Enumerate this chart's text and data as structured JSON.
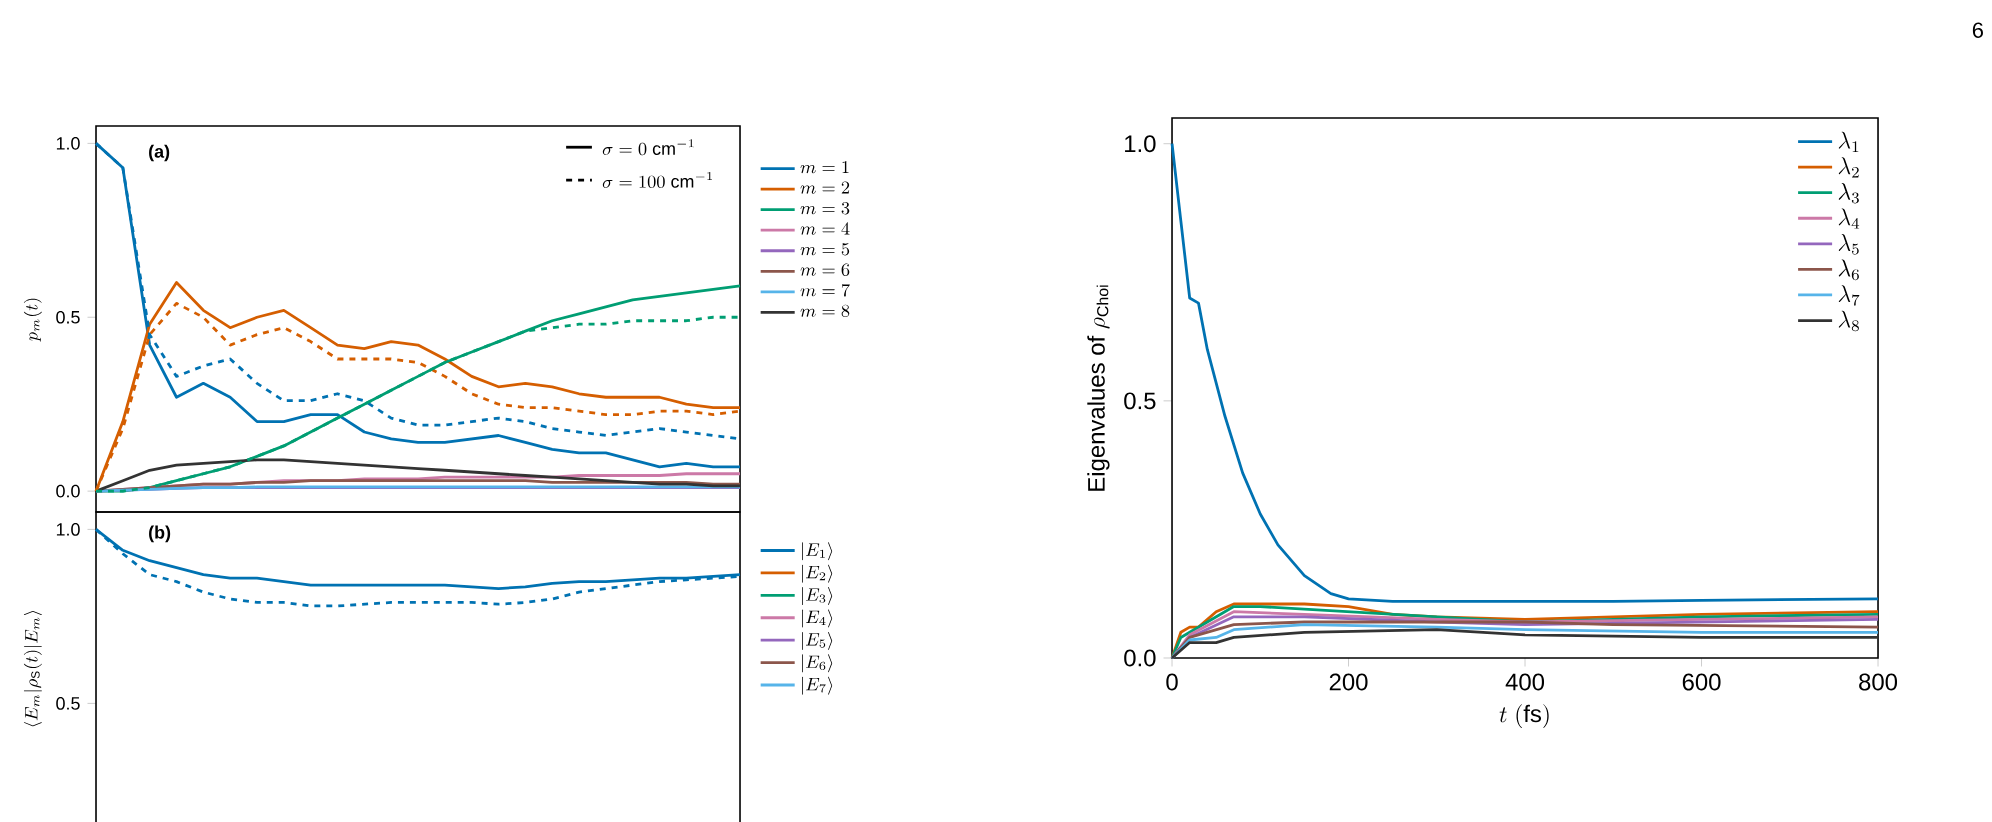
{
  "chart_data": [
    {
      "type": "line",
      "ylabel": "p_m(t)",
      "categories": [
        null,
        null,
        null,
        null,
        null,
        null,
        null,
        null,
        null,
        null,
        null,
        null,
        null,
        null,
        null,
        null,
        null,
        null,
        null,
        null,
        null,
        null,
        null,
        null,
        null
      ],
      "ylim": [
        -0.06,
        1.05
      ],
      "yticks": [
        {
          "value": 0,
          "label": "0.0"
        },
        {
          "value": 0.5,
          "label": "0.5"
        },
        {
          "value": 1,
          "label": "1.0"
        }
      ],
      "tick_labels": "y",
      "legend": "right",
      "annotations": [
        "(a)",
        "\\sigma = 0\\ \\mathrm{cm}^{-1}",
        "\\sigma = 100\\ \\mathrm{cm}^{-1}"
      ],
      "series": [
        {
          "name": "m = 1",
          "color": "#0072b2",
          "values": [
            1.0,
            0.93,
            0.42,
            0.27,
            0.31,
            0.27,
            0.2,
            0.2,
            0.22,
            0.22,
            0.17,
            0.15,
            0.14,
            0.14,
            0.15,
            0.16,
            0.14,
            0.12,
            0.11,
            0.11,
            0.09,
            0.07,
            0.08,
            0.07,
            0.07
          ]
        },
        {
          "name": "m = 2",
          "color": "#d55e00",
          "values": [
            0.0,
            0.2,
            0.48,
            0.6,
            0.52,
            0.47,
            0.5,
            0.52,
            0.47,
            0.42,
            0.41,
            0.43,
            0.42,
            0.38,
            0.33,
            0.3,
            0.31,
            0.3,
            0.28,
            0.27,
            0.27,
            0.27,
            0.25,
            0.24,
            0.24
          ]
        },
        {
          "name": "m = 3",
          "color": "#009e73",
          "values": [
            0.0,
            0.0,
            0.01,
            0.03,
            0.05,
            0.07,
            0.1,
            0.13,
            0.17,
            0.21,
            0.25,
            0.29,
            0.33,
            0.37,
            0.4,
            0.43,
            0.46,
            0.49,
            0.51,
            0.53,
            0.55,
            0.56,
            0.57,
            0.58,
            0.59
          ]
        },
        {
          "name": "m = 4",
          "color": "#cc79a7",
          "values": [
            0.0,
            0.005,
            0.01,
            0.015,
            0.02,
            0.02,
            0.025,
            0.03,
            0.03,
            0.03,
            0.035,
            0.035,
            0.035,
            0.04,
            0.04,
            0.04,
            0.04,
            0.04,
            0.045,
            0.045,
            0.045,
            0.045,
            0.05,
            0.05,
            0.05
          ]
        },
        {
          "name": "m = 5",
          "color": "#9467bd",
          "values": [
            0.0,
            0.003,
            0.005,
            0.008,
            0.01,
            0.01,
            0.01,
            0.01,
            0.01,
            0.01,
            0.01,
            0.01,
            0.01,
            0.01,
            0.01,
            0.01,
            0.01,
            0.01,
            0.01,
            0.01,
            0.01,
            0.01,
            0.01,
            0.01,
            0.01
          ]
        },
        {
          "name": "m = 6",
          "color": "#8c564b",
          "values": [
            0.0,
            0.005,
            0.01,
            0.015,
            0.02,
            0.02,
            0.025,
            0.025,
            0.03,
            0.03,
            0.03,
            0.03,
            0.03,
            0.03,
            0.03,
            0.03,
            0.03,
            0.025,
            0.025,
            0.025,
            0.025,
            0.025,
            0.025,
            0.02,
            0.02
          ]
        },
        {
          "name": "m = 7",
          "color": "#56b4e9",
          "values": [
            0.0,
            0.003,
            0.005,
            0.008,
            0.01,
            0.01,
            0.012,
            0.012,
            0.012,
            0.012,
            0.012,
            0.012,
            0.012,
            0.012,
            0.012,
            0.012,
            0.012,
            0.012,
            0.012,
            0.012,
            0.012,
            0.012,
            0.012,
            0.012,
            0.012
          ]
        },
        {
          "name": "m = 8",
          "color": "#333333",
          "values": [
            0.0,
            0.03,
            0.06,
            0.075,
            0.08,
            0.085,
            0.09,
            0.09,
            0.085,
            0.08,
            0.075,
            0.07,
            0.065,
            0.06,
            0.055,
            0.05,
            0.045,
            0.04,
            0.035,
            0.03,
            0.025,
            0.02,
            0.02,
            0.015,
            0.015
          ]
        },
        {
          "color": "#0072b2",
          "line_style": "dashed",
          "values": [
            1.0,
            0.93,
            0.45,
            0.33,
            0.36,
            0.38,
            0.31,
            0.26,
            0.26,
            0.28,
            0.26,
            0.21,
            0.19,
            0.19,
            0.2,
            0.21,
            0.2,
            0.18,
            0.17,
            0.16,
            0.17,
            0.18,
            0.17,
            0.16,
            0.15
          ]
        },
        {
          "color": "#d55e00",
          "line_style": "dashed",
          "values": [
            0.0,
            0.18,
            0.45,
            0.54,
            0.5,
            0.42,
            0.45,
            0.47,
            0.43,
            0.38,
            0.38,
            0.38,
            0.37,
            0.33,
            0.28,
            0.25,
            0.24,
            0.24,
            0.23,
            0.22,
            0.22,
            0.23,
            0.23,
            0.22,
            0.23
          ]
        },
        {
          "color": "#009e73",
          "line_style": "dashed",
          "values": [
            0.0,
            0.0,
            0.01,
            0.03,
            0.05,
            0.07,
            0.1,
            0.13,
            0.17,
            0.21,
            0.25,
            0.29,
            0.33,
            0.37,
            0.4,
            0.43,
            0.46,
            0.47,
            0.48,
            0.48,
            0.49,
            0.49,
            0.49,
            0.5,
            0.5
          ]
        }
      ]
    },
    {
      "type": "line",
      "ylabel": "\\langle E_m|\\rho_{\\mathrm{S}}(t)|E_m\\rangle",
      "categories": [
        null,
        null,
        null,
        null,
        null,
        null,
        null,
        null,
        null,
        null,
        null,
        null,
        null,
        null,
        null,
        null,
        null,
        null,
        null,
        null,
        null,
        null,
        null,
        null,
        null
      ],
      "ylim": [
        0.15,
        1.05
      ],
      "yticks": [
        {
          "value": 0.5,
          "label": "0.5"
        },
        {
          "value": 1,
          "label": "1.0"
        }
      ],
      "tick_labels": "y",
      "legend": "right",
      "annotations": [
        "(b)"
      ],
      "series": [
        {
          "name": "|E_1\\rangle",
          "color": "#0072b2",
          "values": [
            1.0,
            0.94,
            0.91,
            0.89,
            0.87,
            0.86,
            0.86,
            0.85,
            0.84,
            0.84,
            0.84,
            0.84,
            0.84,
            0.84,
            0.835,
            0.83,
            0.835,
            0.845,
            0.85,
            0.85,
            0.855,
            0.86,
            0.86,
            0.865,
            0.87
          ]
        },
        {
          "name": "|E_2\\rangle",
          "color": "#d55e00",
          "values": [
            null,
            null,
            null,
            null,
            null,
            null,
            null,
            null,
            null,
            null,
            null,
            null,
            null,
            null,
            null,
            null,
            null,
            null,
            null,
            null,
            null,
            null,
            null,
            null,
            null
          ]
        },
        {
          "name": "|E_3\\rangle",
          "color": "#009e73",
          "values": [
            null,
            null,
            null,
            null,
            null,
            null,
            null,
            null,
            null,
            null,
            null,
            null,
            null,
            null,
            null,
            null,
            null,
            null,
            null,
            null,
            null,
            null,
            null,
            null,
            null
          ]
        },
        {
          "name": "|E_4\\rangle",
          "color": "#cc79a7",
          "values": [
            null,
            null,
            null,
            null,
            null,
            null,
            null,
            null,
            null,
            null,
            null,
            null,
            null,
            null,
            null,
            null,
            null,
            null,
            null,
            null,
            null,
            null,
            null,
            null,
            null
          ]
        },
        {
          "name": "|E_5\\rangle",
          "color": "#9467bd",
          "values": [
            null,
            null,
            null,
            null,
            null,
            null,
            null,
            null,
            null,
            null,
            null,
            null,
            null,
            null,
            null,
            null,
            null,
            null,
            null,
            null,
            null,
            null,
            null,
            null,
            null
          ]
        },
        {
          "name": "|E_6\\rangle",
          "color": "#8c564b",
          "values": [
            null,
            null,
            null,
            null,
            null,
            null,
            null,
            null,
            null,
            null,
            null,
            null,
            null,
            null,
            null,
            null,
            null,
            null,
            null,
            null,
            null,
            null,
            null,
            null,
            null
          ]
        },
        {
          "name": "|E_7\\rangle",
          "color": "#56b4e9",
          "values": [
            null,
            null,
            null,
            null,
            null,
            null,
            null,
            null,
            null,
            null,
            null,
            null,
            null,
            null,
            null,
            null,
            null,
            null,
            null,
            null,
            null,
            null,
            null,
            null,
            null
          ]
        },
        {
          "color": "#0072b2",
          "line_style": "dashed",
          "values": [
            1.0,
            0.93,
            0.87,
            0.85,
            0.82,
            0.8,
            0.79,
            0.79,
            0.78,
            0.78,
            0.785,
            0.79,
            0.79,
            0.79,
            0.79,
            0.785,
            0.79,
            0.8,
            0.82,
            0.83,
            0.84,
            0.85,
            0.855,
            0.86,
            0.865
          ]
        }
      ]
    },
    {
      "type": "line",
      "ylabel": "\\mathrm{Eigenvalues\\ of}\\ \\rho_{\\mathrm{Choi}}",
      "xlabel": "t\\ (\\mathrm{fs})",
      "xlim": [
        0,
        800
      ],
      "xticks": [
        0,
        200,
        400,
        600,
        800
      ],
      "ylim": [
        0,
        1.05
      ],
      "yticks": [
        {
          "value": 0,
          "label": "0.0"
        },
        {
          "value": 0.5,
          "label": "0.5"
        },
        {
          "value": 1,
          "label": "1.0"
        }
      ],
      "legend": "top right",
      "annotations": [
        "6"
      ],
      "series": [
        {
          "name": "\\lambda_1",
          "color": "#0072b2",
          "x": [
            0,
            10,
            20,
            30,
            40,
            60,
            80,
            100,
            120,
            150,
            180,
            200,
            250,
            400,
            500,
            600,
            800
          ],
          "values": [
            1.0,
            0.85,
            0.7,
            0.69,
            0.6,
            0.47,
            0.36,
            0.28,
            0.22,
            0.16,
            0.125,
            0.115,
            0.11,
            0.11,
            0.11,
            0.112,
            0.115
          ]
        },
        {
          "name": "\\lambda_2",
          "color": "#d55e00",
          "x": [
            0,
            10,
            20,
            30,
            50,
            70,
            100,
            150,
            200,
            250,
            300,
            400,
            500,
            600,
            800
          ],
          "values": [
            0,
            0.05,
            0.06,
            0.06,
            0.09,
            0.105,
            0.105,
            0.105,
            0.1,
            0.085,
            0.08,
            0.075,
            0.08,
            0.085,
            0.09
          ]
        },
        {
          "name": "\\lambda_3",
          "color": "#009e73",
          "x": [
            0,
            10,
            20,
            40,
            70,
            100,
            150,
            200,
            300,
            400,
            500,
            600,
            800
          ],
          "values": [
            0,
            0.04,
            0.05,
            0.07,
            0.1,
            0.1,
            0.095,
            0.09,
            0.08,
            0.07,
            0.075,
            0.08,
            0.085
          ]
        },
        {
          "name": "\\lambda_4",
          "color": "#cc79a7",
          "x": [
            0,
            20,
            70,
            150,
            300,
            400,
            600,
            800
          ],
          "values": [
            0,
            0.045,
            0.09,
            0.085,
            0.075,
            0.07,
            0.075,
            0.08
          ]
        },
        {
          "name": "\\lambda_5",
          "color": "#9467bd",
          "x": [
            0,
            20,
            70,
            150,
            300,
            400,
            600,
            800
          ],
          "values": [
            0,
            0.04,
            0.08,
            0.08,
            0.07,
            0.065,
            0.07,
            0.075
          ]
        },
        {
          "name": "\\lambda_6",
          "color": "#8c564b",
          "x": [
            0,
            20,
            70,
            150,
            300,
            400,
            500,
            800
          ],
          "values": [
            0,
            0.04,
            0.065,
            0.07,
            0.07,
            0.07,
            0.065,
            0.06
          ]
        },
        {
          "name": "\\lambda_7",
          "color": "#56b4e9",
          "x": [
            0,
            20,
            50,
            70,
            150,
            300,
            400,
            600,
            800
          ],
          "values": [
            0,
            0.035,
            0.04,
            0.055,
            0.065,
            0.06,
            0.055,
            0.05,
            0.05
          ]
        },
        {
          "name": "\\lambda_8",
          "color": "#333333",
          "x": [
            0,
            20,
            50,
            70,
            150,
            300,
            400,
            600,
            800
          ],
          "values": [
            0,
            0.03,
            0.03,
            0.04,
            0.05,
            0.055,
            0.045,
            0.04,
            0.04
          ]
        }
      ]
    }
  ]
}
